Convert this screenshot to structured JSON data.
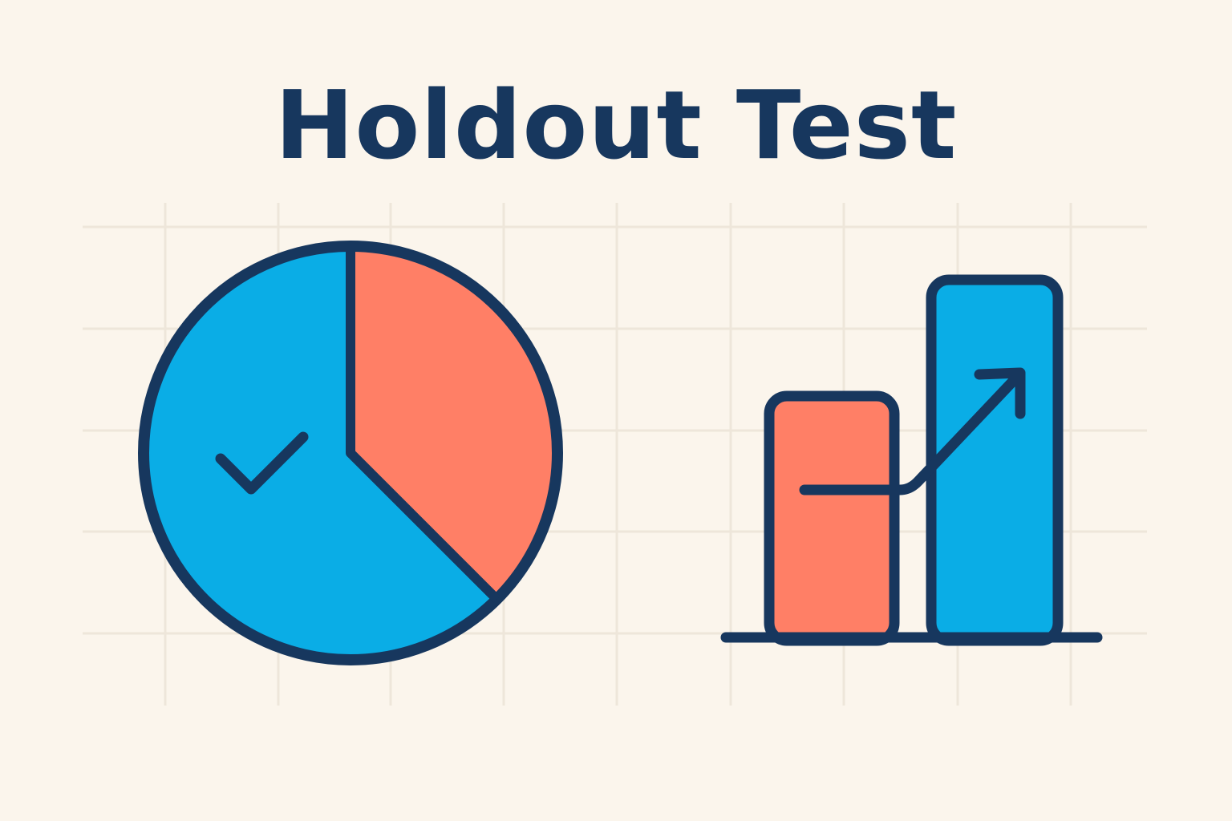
{
  "title": "Holdout Test",
  "colors": {
    "background": "#FBF5EC",
    "outline": "#17375E",
    "blue": "#0AADE6",
    "coral": "#FF7F66",
    "grid": "#EEE6DA"
  },
  "icons": {
    "pie": "pie-chart-with-checkmark",
    "bars": "bar-chart-with-rising-arrow"
  },
  "pie": {
    "coral_fraction": 0.375,
    "blue_fraction": 0.625
  }
}
